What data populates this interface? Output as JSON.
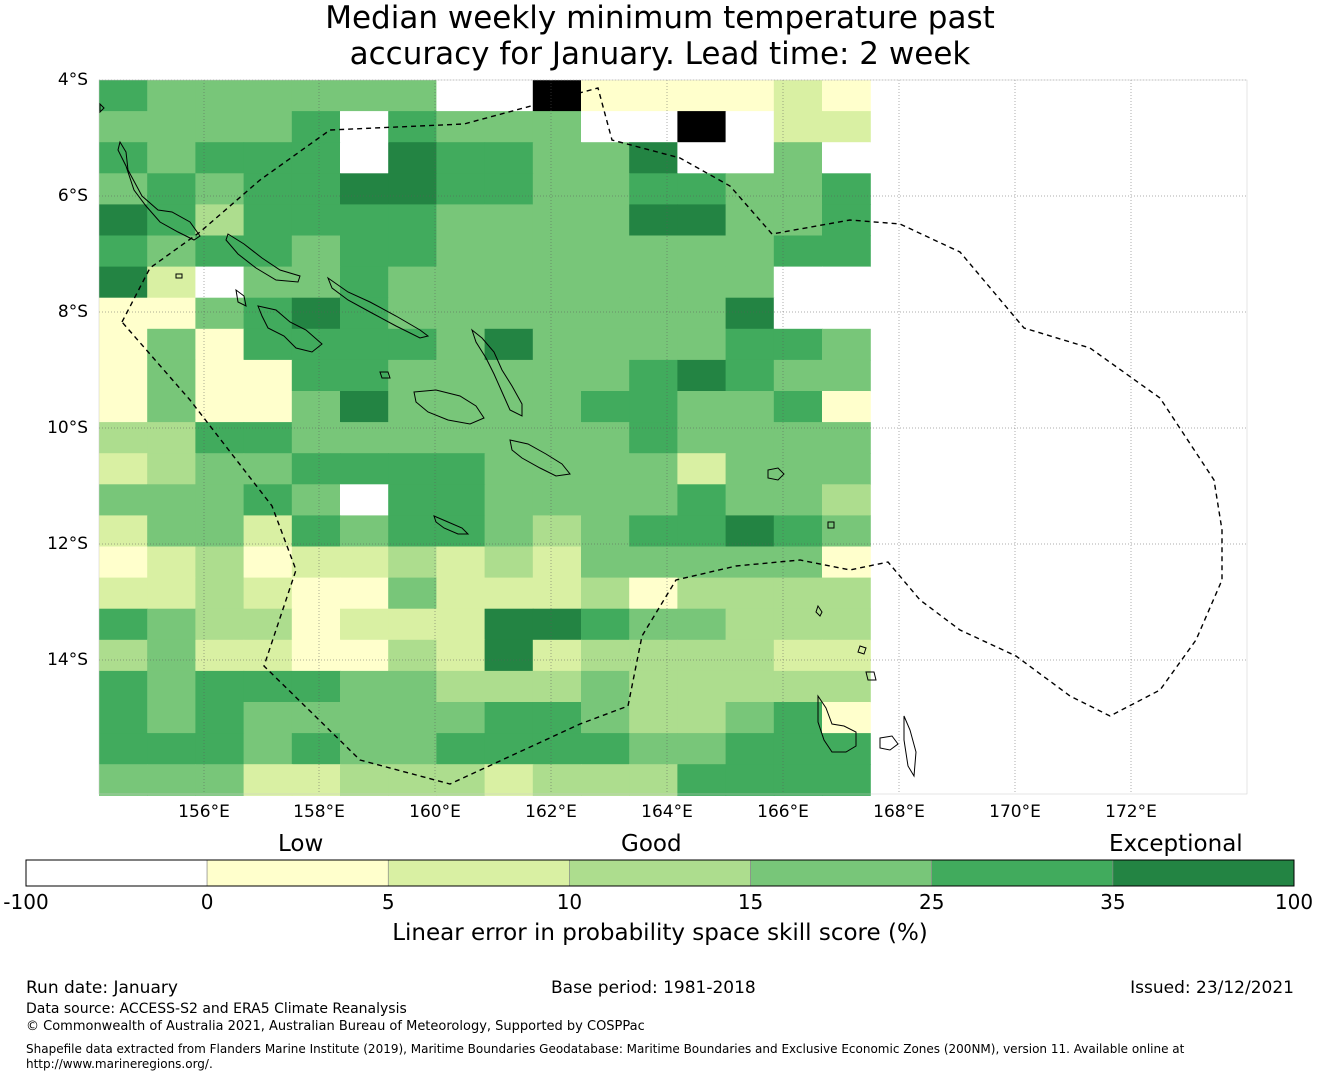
{
  "title": {
    "line1": "Median weekly minimum temperature past",
    "line2": "accuracy for January. Lead time: 2 week"
  },
  "map": {
    "lat_labels": [
      "4°S",
      "6°S",
      "8°S",
      "10°S",
      "12°S",
      "14°S"
    ],
    "lon_labels": [
      "156°E",
      "158°E",
      "160°E",
      "162°E",
      "164°E",
      "166°E",
      "168°E",
      "170°E",
      "172°E"
    ],
    "grid_rows": [
      "4333333667000010",
      "3333464333667611",
      "4344465443356636",
      "3434455443344334",
      "5424444333355334",
      "4344344333333344",
      "5163343333333366",
      "0034543333333566",
      "0304444353333443",
      "0300443333345433",
      "0300353333443340",
      "2244333333343333",
      "1233444433331333",
      "3334364433334332",
      "1331434432344543",
      "0120112121333330",
      "1121003111202222",
      "4322011155433222",
      "2311002151222211",
      "4344433222322222",
      "4343333344322340",
      "4443433444433444",
      "3331122212224444"
    ],
    "color_levels": [
      "#ffffcc",
      "#d9f0a3",
      "#addd8e",
      "#78c679",
      "#41ab5d",
      "#238443",
      "#ffffff"
    ]
  },
  "colorbar": {
    "category_labels": [
      "Low",
      "Good",
      "Exceptional"
    ],
    "ticks": [
      "-100",
      "0",
      "5",
      "10",
      "15",
      "25",
      "35",
      "100"
    ],
    "colors": [
      "#ffffff",
      "#ffffcc",
      "#d9f0a3",
      "#addd8e",
      "#78c679",
      "#41ab5d",
      "#238443"
    ],
    "title": "Linear error in probability space skill score (%)"
  },
  "footer": {
    "run_date": "Run date: January",
    "base_period": "Base period: 1981-2018",
    "issued": "Issued: 23/12/2021",
    "data_source": "Data source: ACCESS-S2 and ERA5 Climate Reanalysis",
    "copyright": "© Commonwealth of Australia 2021, Australian Bureau of Meteorology, Supported by COSPPac",
    "shapefile": "Shapefile data extracted from Flanders Marine Institute (2019), Maritime Boundaries Geodatabase: Maritime Boundaries and Exclusive Economic Zones (200NM), version 11. Available online at http://www.marineregions.org/."
  }
}
